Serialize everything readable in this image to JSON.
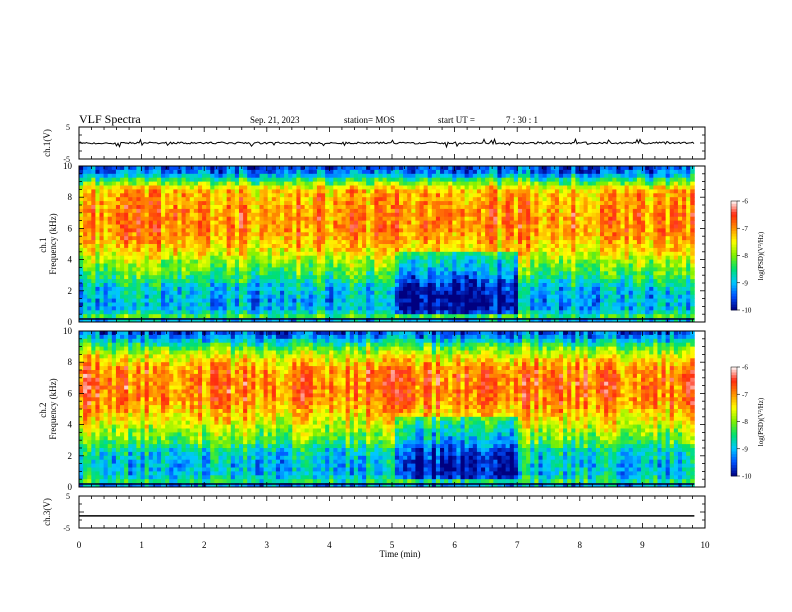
{
  "header": {
    "title": "VLF Spectra",
    "date": "Sep. 21, 2023",
    "station": "station= MOS",
    "start_label": "start  UT  =",
    "start_time": "7 : 30 : 1"
  },
  "chart_data": [
    {
      "type": "line",
      "panel": "ch1-waveform",
      "ylabel": "ch.1(V)",
      "ylim": [
        -5,
        5
      ],
      "yticks": [
        "5",
        "-5"
      ],
      "xlim": [
        0,
        10
      ],
      "x": [
        0,
        9.83
      ],
      "y": [
        0,
        0
      ],
      "note_level": "near-constant trace around 0 V with small spikes"
    },
    {
      "type": "heatmap",
      "panel": "ch1-spectrogram",
      "ylabel": "ch.1\nFrequency (kHz)",
      "xlim": [
        0,
        10
      ],
      "ylim": [
        0,
        10
      ],
      "yticks": [
        "0",
        "2",
        "4",
        "6",
        "8",
        "10"
      ],
      "data_extent_x": [
        0,
        9.83
      ],
      "colorbar": {
        "label": "log(PSD)(V²/Hz)",
        "ticks": [
          "-6",
          "-7",
          "-8",
          "-9",
          "-10"
        ],
        "range": [
          -10,
          -6
        ]
      },
      "frequency_profile_log_psd": {
        "freq_khz": [
          0,
          0.3,
          0.8,
          1.5,
          2.3,
          3.0,
          3.8,
          4.5,
          5.5,
          6.5,
          7.5,
          8.5,
          9.0,
          9.5,
          10
        ],
        "level": [
          -9.6,
          -8.2,
          -9.0,
          -9.0,
          -8.8,
          -8.3,
          -7.9,
          -7.4,
          -7.0,
          -6.9,
          -7.0,
          -7.2,
          -8.2,
          -9.2,
          -9.6
        ]
      }
    },
    {
      "type": "heatmap",
      "panel": "ch2-spectrogram",
      "ylabel": "ch.2\nFrequency (kHz)",
      "xlim": [
        0,
        10
      ],
      "ylim": [
        0,
        10
      ],
      "yticks": [
        "0",
        "2",
        "4",
        "6",
        "8",
        "10"
      ],
      "data_extent_x": [
        0,
        9.83
      ],
      "colorbar": {
        "label": "log(PSD)(V²/Hz)",
        "ticks": [
          "-6",
          "-7",
          "-8",
          "-9",
          "-10"
        ],
        "range": [
          -10,
          -6
        ]
      },
      "frequency_profile_log_psd": {
        "freq_khz": [
          0,
          0.3,
          0.8,
          1.5,
          2.3,
          3.0,
          3.8,
          4.5,
          5.5,
          6.5,
          7.5,
          8.5,
          9.0,
          9.5,
          10
        ],
        "level": [
          -9.6,
          -8.4,
          -8.9,
          -8.9,
          -8.7,
          -8.1,
          -7.7,
          -7.3,
          -6.9,
          -6.8,
          -6.9,
          -7.6,
          -8.2,
          -9.0,
          -9.6
        ]
      }
    },
    {
      "type": "line",
      "panel": "ch3-waveform",
      "ylabel": "ch.3(V)",
      "ylim": [
        -5,
        5
      ],
      "yticks": [
        "5",
        "-5"
      ],
      "xlim": [
        0,
        10
      ],
      "x": [
        0,
        9.83
      ],
      "y": [
        -1.2,
        -1.2
      ]
    }
  ],
  "xaxis": {
    "label": "Time  (min)",
    "ticks": [
      "0",
      "1",
      "2",
      "3",
      "4",
      "5",
      "6",
      "7",
      "8",
      "9",
      "10"
    ]
  },
  "colors": {
    "colormap": [
      "#000080",
      "#0050ff",
      "#00c8ff",
      "#00e070",
      "#80f000",
      "#ffff00",
      "#ff9000",
      "#ff2a10",
      "#ffffff"
    ]
  }
}
